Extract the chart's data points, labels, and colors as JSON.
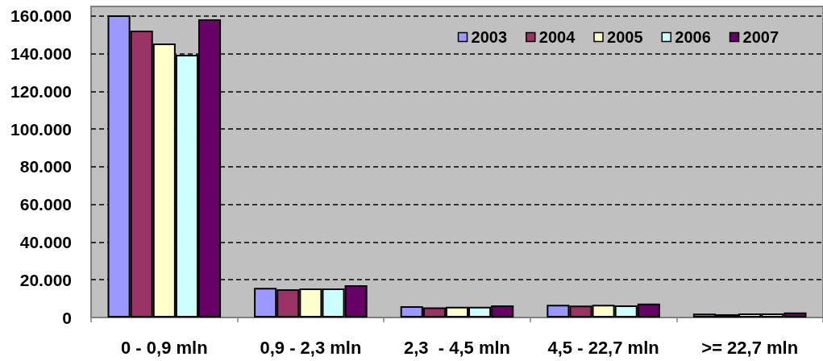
{
  "chart_data": {
    "type": "bar",
    "categories": [
      "0 - 0,9 mln",
      "0,9 - 2,3 mln",
      "2,3  - 4,5 mln",
      "4,5 - 22,7 mln",
      ">= 22,7 mln"
    ],
    "series": [
      {
        "name": "2003",
        "color": "#9999ff",
        "values": [
          160300,
          15700,
          6000,
          6700,
          2000
        ]
      },
      {
        "name": "2004",
        "color": "#993366",
        "values": [
          152200,
          15000,
          5300,
          6300,
          1700
        ]
      },
      {
        "name": "2005",
        "color": "#ffffcc",
        "values": [
          145300,
          15400,
          5700,
          6700,
          2100
        ]
      },
      {
        "name": "2006",
        "color": "#ccffff",
        "values": [
          139300,
          15400,
          5700,
          6400,
          2100
        ]
      },
      {
        "name": "2007",
        "color": "#660066",
        "values": [
          158200,
          17100,
          6400,
          7400,
          2700
        ]
      }
    ],
    "ylim": [
      0,
      165000
    ],
    "yticks": [
      0,
      {
        "value": 20000,
        "label": "20.000"
      },
      {
        "value": 40000,
        "label": "40.000"
      },
      {
        "value": 60000,
        "label": "60.000"
      },
      {
        "value": 80000,
        "label": "80.000"
      },
      {
        "value": 100000,
        "label": "100.000"
      },
      {
        "value": 120000,
        "label": "120.000"
      },
      {
        "value": 140000,
        "label": "140.000"
      },
      {
        "value": 160000,
        "label": "160.000"
      }
    ],
    "grid": "y",
    "legend": "top right"
  }
}
